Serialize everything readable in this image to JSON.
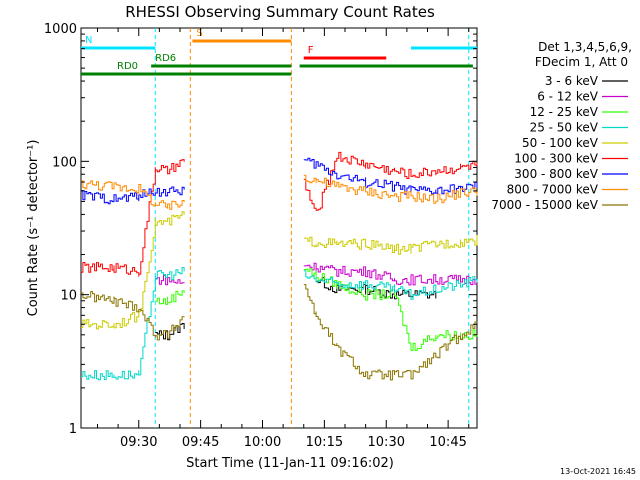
{
  "chart_data": {
    "type": "line",
    "title": "RHESSI Observing Summary Count Rates",
    "xlabel": "Start Time (11-Jan-11 09:16:02)",
    "ylabel": "Count Rate (s⁻¹ detector⁻¹)",
    "y_scale": "log",
    "ylim": [
      1,
      1000
    ],
    "xlim": [
      "09:16",
      "10:52"
    ],
    "x_ticks": [
      "09:30",
      "09:45",
      "10:00",
      "10:15",
      "10:30",
      "10:45"
    ],
    "y_ticks": [
      "1",
      "10",
      "100",
      "1000"
    ],
    "grid": false,
    "legend_position": "right",
    "legend_header": [
      "Det 1,3,4,5,6,9,",
      "FDecim 1, Att 0"
    ],
    "date_stamp": "13-Oct-2021 16:45",
    "attenuator_gaps": [
      [
        "09:42:30",
        "10:07:00"
      ]
    ],
    "flag_bars": [
      {
        "label": "S",
        "color": "#ff8c00",
        "start": "09:43",
        "end": "10:07"
      },
      {
        "label": "F",
        "color": "#ff0000",
        "start": "10:10",
        "end": "10:30"
      },
      {
        "label": "N",
        "color": "#00e5ff",
        "start": "09:16",
        "end": "09:34"
      },
      {
        "label": "",
        "color": "#00e5ff",
        "start": "10:36",
        "end": "10:52"
      },
      {
        "label": "RD0",
        "color": "#008000",
        "start": "09:16",
        "end": "10:07"
      },
      {
        "label": "RD6",
        "color": "#008000",
        "start": "09:33",
        "end": "10:07"
      },
      {
        "label": "",
        "color": "#008000",
        "start": "10:09",
        "end": "10:51"
      }
    ],
    "x": [
      "09:16",
      "09:24",
      "09:30",
      "09:34",
      "09:37",
      "09:41",
      "09:43",
      "10:10",
      "10:13",
      "10:18",
      "10:25",
      "10:32",
      "10:36",
      "10:42",
      "10:48",
      "10:52"
    ],
    "series": [
      {
        "name": "3 - 6 keV",
        "color": "#000000",
        "values": [
          null,
          null,
          null,
          5,
          5,
          6,
          null,
          null,
          13,
          11,
          11,
          10,
          10,
          10,
          null,
          null
        ]
      },
      {
        "name": "6 - 12 keV",
        "color": "#cc00cc",
        "values": [
          null,
          null,
          null,
          13,
          13,
          12,
          null,
          17,
          16,
          15,
          15,
          13,
          13,
          13,
          13,
          13
        ]
      },
      {
        "name": "12 - 25 keV",
        "color": "#33ff00",
        "values": [
          null,
          null,
          null,
          9,
          9,
          11,
          null,
          16,
          14,
          12,
          10,
          10,
          4,
          5,
          5,
          5
        ]
      },
      {
        "name": "25 - 50 keV",
        "color": "#00d8c8",
        "values": [
          2.5,
          2.5,
          2.5,
          14,
          14,
          15,
          null,
          14,
          13,
          12,
          12,
          11,
          10,
          11,
          12,
          13
        ]
      },
      {
        "name": "50 - 100 keV",
        "color": "#cccc00",
        "values": [
          6,
          6,
          7,
          35,
          35,
          40,
          null,
          25,
          25,
          24,
          24,
          22,
          22,
          24,
          25,
          26
        ]
      },
      {
        "name": "100 - 300 keV",
        "color": "#ff0000",
        "values": [
          16,
          16,
          15,
          90,
          85,
          100,
          null,
          70,
          40,
          110,
          95,
          85,
          80,
          85,
          90,
          95
        ]
      },
      {
        "name": "300 - 800 keV",
        "color": "#0000ff",
        "values": [
          56,
          52,
          55,
          60,
          58,
          62,
          null,
          100,
          95,
          80,
          70,
          65,
          60,
          60,
          62,
          65
        ]
      },
      {
        "name": "800 - 7000 keV",
        "color": "#ff8c00",
        "values": [
          68,
          65,
          62,
          48,
          45,
          50,
          null,
          78,
          72,
          65,
          60,
          55,
          55,
          52,
          58,
          60
        ]
      },
      {
        "name": "7000 - 15000 keV",
        "color": "#8b7500",
        "values": [
          10,
          9,
          8,
          5,
          5,
          7,
          null,
          12,
          7,
          4,
          2.5,
          2.5,
          2.5,
          3.5,
          5,
          6
        ]
      }
    ]
  }
}
